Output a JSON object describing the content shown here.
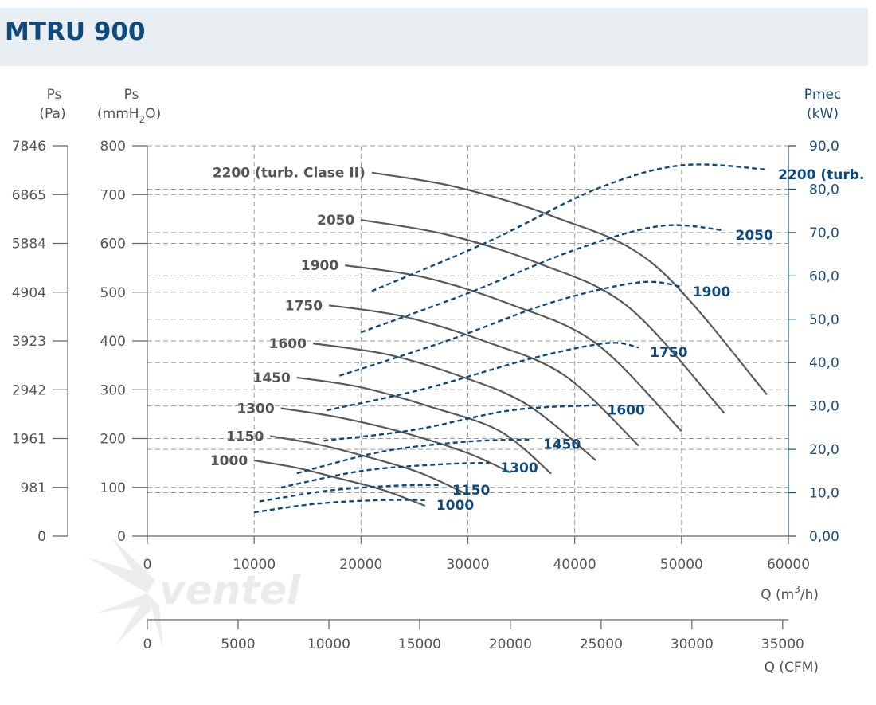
{
  "title": "MTRU 900",
  "logo_text": "ventel",
  "axes": {
    "left_pa": {
      "label": "Ps",
      "unit": "(Pa)",
      "ticks": [
        "0",
        "981",
        "1961",
        "2942",
        "3923",
        "4904",
        "5884",
        "6865",
        "7846"
      ]
    },
    "left_mmh2o": {
      "label": "Ps",
      "unit_prefix": "(mmH",
      "unit_sub": "2",
      "unit_suffix": "O)",
      "ticks": [
        "0",
        "100",
        "200",
        "300",
        "400",
        "500",
        "600",
        "700",
        "800"
      ]
    },
    "right_kw": {
      "label": "Pmec",
      "unit": "(kW)",
      "ticks": [
        "0,00",
        "10,0",
        "20,0",
        "30,0",
        "40,0",
        "50,0",
        "60,0",
        "70,0",
        "80,0",
        "90,0"
      ]
    },
    "x_m3h": {
      "label_prefix": "Q (m",
      "label_sup": "3",
      "label_suffix": "/h)",
      "ticks": [
        "0",
        "10000",
        "20000",
        "30000",
        "40000",
        "50000",
        "60000"
      ]
    },
    "x_cfm": {
      "label": "Q (CFM)",
      "ticks": [
        "0",
        "5000",
        "10000",
        "15000",
        "20000",
        "25000",
        "30000",
        "35000"
      ]
    }
  },
  "chart_data": {
    "type": "line",
    "xlabel": "Q (m3/h)",
    "ylabel": "Ps (mmH2O)",
    "y2label": "Pmec (kW)",
    "xlim": [
      0,
      60000
    ],
    "ylim": [
      0,
      800
    ],
    "y2lim": [
      0,
      90
    ],
    "grid": true,
    "pressure_series": [
      {
        "name": "1000",
        "label": "1000",
        "points": [
          [
            10000,
            155
          ],
          [
            14000,
            140
          ],
          [
            18000,
            118
          ],
          [
            22000,
            95
          ],
          [
            26000,
            62
          ]
        ]
      },
      {
        "name": "1150",
        "label": "1150",
        "points": [
          [
            11500,
            205
          ],
          [
            16000,
            188
          ],
          [
            21000,
            160
          ],
          [
            25500,
            130
          ],
          [
            30000,
            85
          ]
        ]
      },
      {
        "name": "1300",
        "label": "1300",
        "points": [
          [
            12500,
            262
          ],
          [
            18000,
            243
          ],
          [
            24000,
            212
          ],
          [
            30000,
            170
          ],
          [
            34000,
            130
          ]
        ]
      },
      {
        "name": "1450",
        "label": "1450",
        "points": [
          [
            14000,
            325
          ],
          [
            20000,
            305
          ],
          [
            26500,
            265
          ],
          [
            33000,
            215
          ],
          [
            37800,
            128
          ]
        ]
      },
      {
        "name": "1600",
        "label": "1600",
        "points": [
          [
            15500,
            395
          ],
          [
            22500,
            372
          ],
          [
            29000,
            330
          ],
          [
            35500,
            270
          ],
          [
            42000,
            155
          ]
        ]
      },
      {
        "name": "1750",
        "label": "1750",
        "points": [
          [
            17000,
            473
          ],
          [
            24000,
            450
          ],
          [
            31500,
            400
          ],
          [
            39000,
            330
          ],
          [
            46000,
            185
          ]
        ]
      },
      {
        "name": "1900",
        "label": "1900",
        "points": [
          [
            18500,
            555
          ],
          [
            26000,
            530
          ],
          [
            34000,
            475
          ],
          [
            42000,
            395
          ],
          [
            50000,
            215
          ]
        ]
      },
      {
        "name": "2050",
        "label": "2050",
        "points": [
          [
            20000,
            648
          ],
          [
            28000,
            618
          ],
          [
            36500,
            560
          ],
          [
            45000,
            470
          ],
          [
            54000,
            252
          ]
        ]
      },
      {
        "name": "2200 (turb. Clase II)",
        "label": "2200 (turb. Clase II)",
        "points": [
          [
            21000,
            745
          ],
          [
            29000,
            715
          ],
          [
            38000,
            655
          ],
          [
            47500,
            555
          ],
          [
            58000,
            290
          ]
        ]
      }
    ],
    "power_series": [
      {
        "name": "1000",
        "label": "1000",
        "points": [
          [
            10000,
            5.5
          ],
          [
            16000,
            7.5
          ],
          [
            22000,
            8.3
          ],
          [
            26000,
            8.3
          ]
        ]
      },
      {
        "name": "1150",
        "label": "1150",
        "points": [
          [
            10500,
            8
          ],
          [
            17000,
            10.5
          ],
          [
            23000,
            11.6
          ],
          [
            27500,
            11.8
          ]
        ]
      },
      {
        "name": "1300",
        "label": "1300",
        "points": [
          [
            12500,
            11.2
          ],
          [
            20000,
            15
          ],
          [
            27000,
            16.5
          ],
          [
            32000,
            16.9
          ]
        ]
      },
      {
        "name": "1450",
        "label": "1450",
        "points": [
          [
            14000,
            14.5
          ],
          [
            22000,
            19.5
          ],
          [
            30000,
            21.8
          ],
          [
            36000,
            22.3
          ]
        ]
      },
      {
        "name": "1600",
        "label": "1600",
        "points": [
          [
            16500,
            22
          ],
          [
            25000,
            24.5
          ],
          [
            34000,
            29
          ],
          [
            42000,
            30.2
          ]
        ]
      },
      {
        "name": "1750",
        "label": "1750",
        "points": [
          [
            16800,
            29
          ],
          [
            26000,
            34
          ],
          [
            36000,
            41
          ],
          [
            43000,
            44.5
          ],
          [
            46000,
            43.5
          ]
        ]
      },
      {
        "name": "1900",
        "label": "1900",
        "points": [
          [
            18000,
            37
          ],
          [
            28000,
            45
          ],
          [
            38000,
            54
          ],
          [
            46000,
            58.5
          ],
          [
            50000,
            57.5
          ]
        ]
      },
      {
        "name": "2050",
        "label": "2050",
        "points": [
          [
            20000,
            47
          ],
          [
            30000,
            56
          ],
          [
            40000,
            66
          ],
          [
            48000,
            71.5
          ],
          [
            54000,
            70.5
          ]
        ]
      },
      {
        "name": "2200 (turb. Clase II)",
        "label": "2200 (turb.",
        "points": [
          [
            21000,
            56.5
          ],
          [
            32000,
            68
          ],
          [
            42000,
            80
          ],
          [
            50000,
            85.5
          ],
          [
            58000,
            84.5
          ]
        ]
      }
    ]
  }
}
